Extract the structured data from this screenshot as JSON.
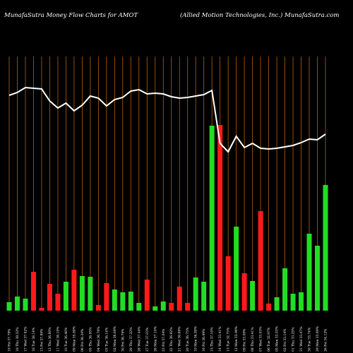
{
  "chart_data": {
    "type": "bar",
    "title": "MunafaSutra  Money Flow  Charts for AMOT",
    "subtitle": "(Allied Motion  Technologies, Inc.) MunafaSutra.com",
    "categories": [
      "19 Fri 37.78%",
      "18 Thu 38.32%",
      "17 Wed 37.92%",
      "16 Tue 38.14%",
      "13 Fri 37.89%",
      "12 Thu 36.80%",
      "11 Wed 36.10%",
      "10 Tue 36.46%",
      "09 Mon 35.89%",
      "06 Fri 36.24%",
      "05 Thu 36.95%",
      "04 Wed 36.79%",
      "03 Tue 36.14%",
      "02 Mon 36.69%",
      "30 Fri 36.79%",
      "29 Thu 37.32%",
      "28 Wed 37.44%",
      "27 Tue 37.03%",
      "26 Mon 37.10%",
      "23 Fri 37.04%",
      "22 Thu 36.82%",
      "21 Wed 36.69%",
      "20 Tue 36.75%",
      "19 Mon 36.89%",
      "16 Fri 36.99%",
      "15 Thu 37.10%",
      "14 Wed 33.41%",
      "13 Tue 32.75%",
      "12 Mon 33.96%",
      "09 Fri 33.09%",
      "08 Thu 33.41%",
      "07 Wed 33.03%",
      "06 Tue 32.97%",
      "05 Mon 33.03%",
      "02 Fri 33.14%",
      "01 Thu 33.25%",
      "31 Wed 33.47%",
      "30 Tue 33.74%",
      "29 Mon 33.69%",
      "26 Fri 34.12%"
    ],
    "values": [
      12,
      20,
      17,
      55,
      4,
      38,
      24,
      41,
      58,
      49,
      48,
      8,
      39,
      30,
      26,
      27,
      11,
      44,
      6,
      13,
      11,
      34,
      11,
      47,
      41,
      262,
      263,
      77,
      119,
      53,
      42,
      141,
      10,
      19,
      60,
      24,
      26,
      109,
      92,
      178
    ],
    "colors": [
      "#22dd22",
      "#22dd22",
      "#22dd22",
      "#ff1a1a",
      "#ff1a1a",
      "#ff1a1a",
      "#ff1a1a",
      "#22dd22",
      "#ff1a1a",
      "#22dd22",
      "#22dd22",
      "#ff1a1a",
      "#ff1a1a",
      "#22dd22",
      "#22dd22",
      "#22dd22",
      "#22dd22",
      "#ff1a1a",
      "#22dd22",
      "#22dd22",
      "#ff1a1a",
      "#ff1a1a",
      "#ff1a1a",
      "#22dd22",
      "#22dd22",
      "#22dd22",
      "#ff1a1a",
      "#ff1a1a",
      "#22dd22",
      "#ff1a1a",
      "#22dd22",
      "#ff1a1a",
      "#ff1a1a",
      "#22dd22",
      "#22dd22",
      "#22dd22",
      "#22dd22",
      "#22dd22",
      "#22dd22",
      "#22dd22"
    ],
    "line": {
      "color": "#ffffff",
      "values": [
        305,
        309,
        316,
        315,
        314,
        297,
        287,
        294,
        283,
        291,
        304,
        301,
        290,
        299,
        302,
        311,
        313,
        307,
        308,
        307,
        303,
        301,
        302,
        304,
        306,
        312,
        237,
        225,
        247,
        231,
        237,
        230,
        229,
        230,
        232,
        234,
        238,
        243,
        242,
        250
      ]
    },
    "ylim": [
      0,
      360
    ],
    "gridcolor": "#b8600b"
  }
}
